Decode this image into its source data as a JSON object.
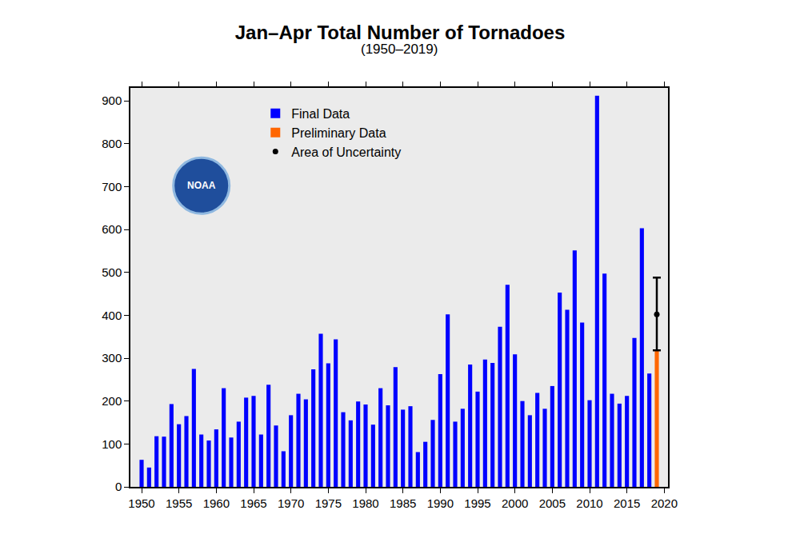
{
  "chart_data": {
    "type": "bar",
    "title": "Jan–Apr Total Number of Tornadoes",
    "subtitle": "(1950–2019)",
    "annotations": [
      "NOAA"
    ],
    "series": [
      {
        "name": "Final Data",
        "color": "#0000ff",
        "x": [
          1950,
          1951,
          1952,
          1953,
          1954,
          1955,
          1956,
          1957,
          1958,
          1959,
          1960,
          1961,
          1962,
          1963,
          1964,
          1965,
          1966,
          1967,
          1968,
          1969,
          1970,
          1971,
          1972,
          1973,
          1974,
          1975,
          1976,
          1977,
          1978,
          1979,
          1980,
          1981,
          1982,
          1983,
          1984,
          1985,
          1986,
          1987,
          1988,
          1989,
          1990,
          1991,
          1992,
          1993,
          1994,
          1995,
          1996,
          1997,
          1998,
          1999,
          2000,
          2001,
          2002,
          2003,
          2004,
          2005,
          2006,
          2007,
          2008,
          2009,
          2010,
          2011,
          2012,
          2013,
          2014,
          2015,
          2016,
          2017,
          2018
        ],
        "values": [
          63,
          45,
          118,
          117,
          193,
          146,
          165,
          275,
          122,
          108,
          134,
          230,
          115,
          152,
          208,
          212,
          122,
          238,
          143,
          83,
          167,
          217,
          204,
          274,
          357,
          288,
          344,
          174,
          155,
          199,
          192,
          145,
          230,
          190,
          279,
          180,
          188,
          81,
          105,
          156,
          263,
          402,
          152,
          182,
          285,
          222,
          297,
          289,
          373,
          471,
          309,
          200,
          167,
          219,
          182,
          235,
          453,
          413,
          551,
          383,
          202,
          912,
          497,
          217,
          194,
          212,
          347,
          603,
          264
        ]
      },
      {
        "name": "Preliminary Data",
        "color": "#ff6600",
        "x": [
          2019
        ],
        "values": [
          317
        ]
      },
      {
        "name": "Area of Uncertainty",
        "type": "scatter",
        "color": "#000000",
        "marker": "circle",
        "x": [
          2019
        ],
        "values": [
          402
        ],
        "low": [
          318
        ],
        "high": [
          488
        ]
      }
    ],
    "xlim": [
      1948.5,
      2020.5
    ],
    "xticks": [
      1950,
      1955,
      1960,
      1965,
      1970,
      1975,
      1980,
      1985,
      1990,
      1995,
      2000,
      2005,
      2010,
      2015,
      2020
    ],
    "ylim": [
      0,
      930
    ],
    "yticks": [
      0,
      100,
      200,
      300,
      400,
      500,
      600,
      700,
      800,
      900
    ],
    "y2lim": [
      0,
      930
    ],
    "y2ticks": [
      0,
      100,
      200,
      300,
      400,
      500,
      600,
      700,
      800,
      900
    ],
    "grid": false,
    "legend": "upper left"
  }
}
